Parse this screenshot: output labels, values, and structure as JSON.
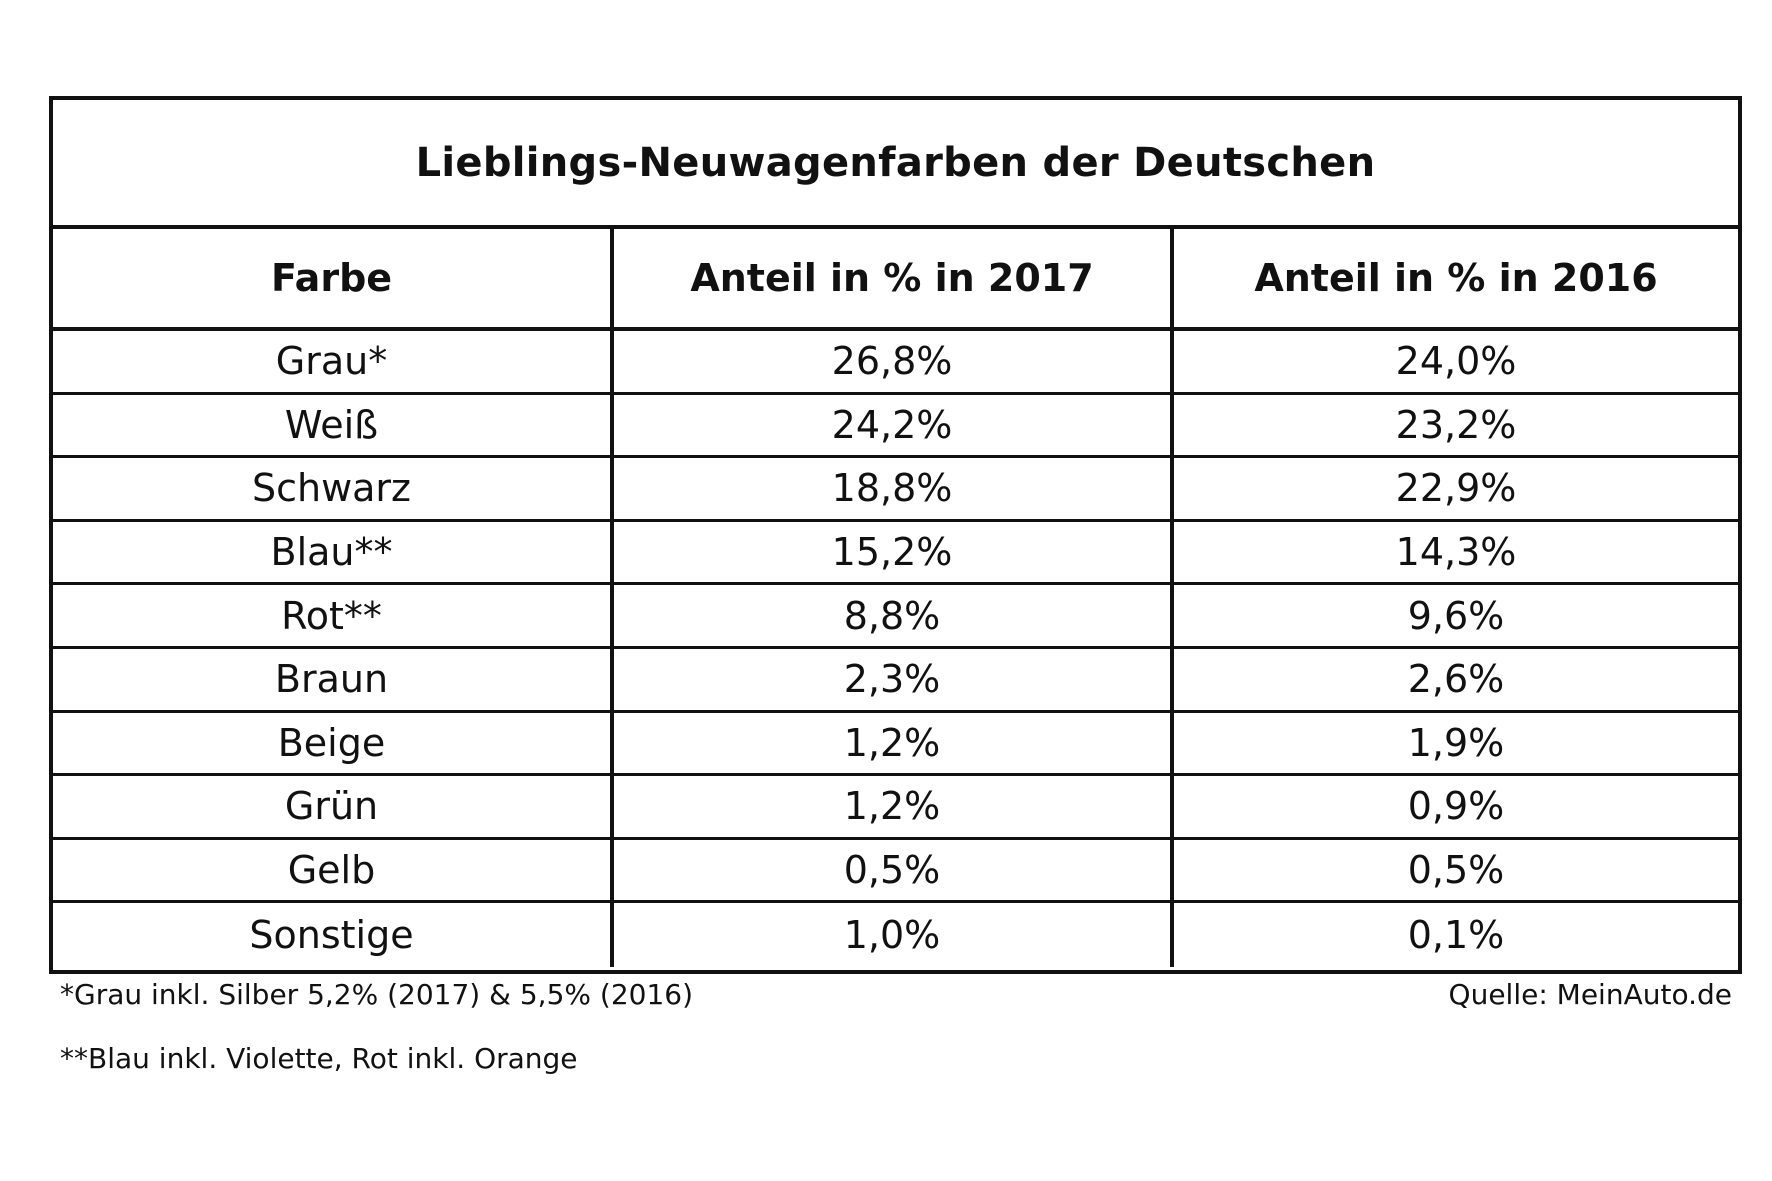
{
  "table": {
    "title": "Lieblings-Neuwagenfarben der Deutschen",
    "headers": [
      "Farbe",
      "Anteil in % in 2017",
      "Anteil in % in 2016"
    ],
    "rows": [
      [
        "Grau*",
        "26,8%",
        "24,0%"
      ],
      [
        "Weiß",
        "24,2%",
        "23,2%"
      ],
      [
        "Schwarz",
        "18,8%",
        "22,9%"
      ],
      [
        "Blau**",
        "15,2%",
        "14,3%"
      ],
      [
        "Rot**",
        "8,8%",
        "9,6%"
      ],
      [
        "Braun",
        "2,3%",
        "2,6%"
      ],
      [
        "Beige",
        "1,2%",
        "1,9%"
      ],
      [
        "Grün",
        "1,2%",
        "0,9%"
      ],
      [
        "Gelb",
        "0,5%",
        "0,5%"
      ],
      [
        "Sonstige",
        "1,0%",
        "0,1%"
      ]
    ]
  },
  "footnotes": {
    "note1": "*Grau inkl. Silber 5,2% (2017) & 5,5% (2016)",
    "note2": "**Blau inkl. Violette, Rot inkl. Orange",
    "source": "Quelle: MeinAuto.de"
  }
}
